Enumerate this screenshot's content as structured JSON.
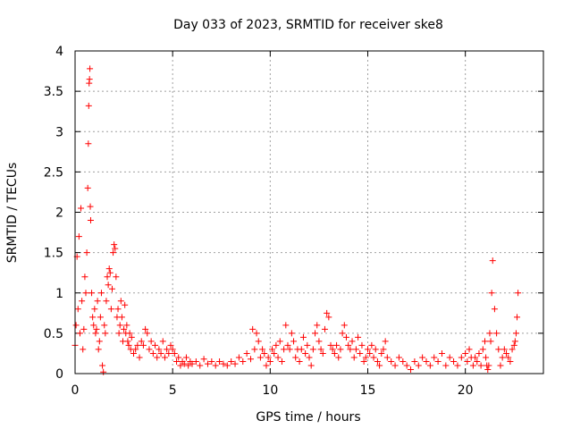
{
  "chart_data": {
    "type": "scatter",
    "title": "Day 033 of 2023, SRMTID for receiver ske8",
    "xlabel": "GPS time / hours",
    "ylabel": "SRMTID / TECUs",
    "xlim": [
      0,
      24
    ],
    "ylim": [
      0,
      4
    ],
    "xticks": [
      0,
      5,
      10,
      15,
      20
    ],
    "xtick_labels": [
      "0",
      "5",
      "10",
      "15",
      "20"
    ],
    "yticks": [
      0,
      0.5,
      1,
      1.5,
      2,
      2.5,
      3,
      3.5,
      4
    ],
    "ytick_labels": [
      "0",
      "0.5",
      "1",
      "1.5",
      "2",
      "2.5",
      "3",
      "3.5",
      "4"
    ],
    "grid": true,
    "marker": "plus",
    "color": "#ff0000",
    "series": [
      {
        "name": "SRMTID",
        "x": [
          0.0,
          0.05,
          0.1,
          0.15,
          0.2,
          0.25,
          0.3,
          0.35,
          0.4,
          0.45,
          0.5,
          0.55,
          0.6,
          0.65,
          0.68,
          0.7,
          0.72,
          0.74,
          0.76,
          0.78,
          0.8,
          0.85,
          0.9,
          0.95,
          1.0,
          1.05,
          1.1,
          1.15,
          1.2,
          1.25,
          1.3,
          1.35,
          1.4,
          1.45,
          1.5,
          1.55,
          1.6,
          1.65,
          1.7,
          1.75,
          1.8,
          1.85,
          1.9,
          1.95,
          2.0,
          2.05,
          2.1,
          2.15,
          2.2,
          2.25,
          2.3,
          2.35,
          2.4,
          2.45,
          2.5,
          2.55,
          2.6,
          2.65,
          2.7,
          2.75,
          2.8,
          2.85,
          2.9,
          3.0,
          3.1,
          3.2,
          3.3,
          3.4,
          3.5,
          3.6,
          3.7,
          3.8,
          3.9,
          4.0,
          4.1,
          4.2,
          4.3,
          4.4,
          4.5,
          4.6,
          4.7,
          4.8,
          4.9,
          5.0,
          5.1,
          5.2,
          5.3,
          5.4,
          5.5,
          5.6,
          5.7,
          5.8,
          5.9,
          6.0,
          6.2,
          6.4,
          6.6,
          6.8,
          7.0,
          7.2,
          7.4,
          7.6,
          7.8,
          8.0,
          8.2,
          8.4,
          8.6,
          8.8,
          9.0,
          9.1,
          9.2,
          9.3,
          9.4,
          9.5,
          9.6,
          9.7,
          9.8,
          9.9,
          10.0,
          10.1,
          10.2,
          10.3,
          10.4,
          10.5,
          10.6,
          10.7,
          10.8,
          10.9,
          11.0,
          11.1,
          11.2,
          11.3,
          11.4,
          11.5,
          11.6,
          11.7,
          11.8,
          11.9,
          12.0,
          12.1,
          12.2,
          12.3,
          12.4,
          12.5,
          12.6,
          12.7,
          12.8,
          12.9,
          13.0,
          13.1,
          13.2,
          13.3,
          13.4,
          13.5,
          13.6,
          13.7,
          13.8,
          13.9,
          14.0,
          14.1,
          14.2,
          14.3,
          14.4,
          14.5,
          14.6,
          14.7,
          14.8,
          14.9,
          15.0,
          15.1,
          15.2,
          15.3,
          15.4,
          15.5,
          15.6,
          15.7,
          15.8,
          15.9,
          16.0,
          16.2,
          16.4,
          16.6,
          16.8,
          17.0,
          17.2,
          17.4,
          17.6,
          17.8,
          18.0,
          18.2,
          18.4,
          18.6,
          18.8,
          19.0,
          19.2,
          19.4,
          19.6,
          19.8,
          20.0,
          20.1,
          20.2,
          20.3,
          20.4,
          20.5,
          20.6,
          20.7,
          20.8,
          20.9,
          21.0,
          21.05,
          21.1,
          21.15,
          21.2,
          21.25,
          21.3,
          21.35,
          21.4,
          21.5,
          21.6,
          21.7,
          21.8,
          21.9,
          22.0,
          22.1,
          22.2,
          22.3,
          22.4,
          22.5,
          22.55,
          22.6,
          22.65,
          22.7
        ],
        "y": [
          0.35,
          0.6,
          1.45,
          0.8,
          1.7,
          0.5,
          2.05,
          0.9,
          0.3,
          0.55,
          1.2,
          1.0,
          1.5,
          2.3,
          2.85,
          3.32,
          3.6,
          3.65,
          3.78,
          2.07,
          1.9,
          1.0,
          0.7,
          0.6,
          0.8,
          0.5,
          0.55,
          0.9,
          0.3,
          0.4,
          0.7,
          1.0,
          0.1,
          0.02,
          0.6,
          0.5,
          0.9,
          1.2,
          1.1,
          1.3,
          1.25,
          0.8,
          1.05,
          1.5,
          1.6,
          1.55,
          1.2,
          0.7,
          0.8,
          0.5,
          0.6,
          0.9,
          0.7,
          0.4,
          0.55,
          0.85,
          0.5,
          0.6,
          0.4,
          0.35,
          0.5,
          0.3,
          0.45,
          0.25,
          0.3,
          0.35,
          0.2,
          0.4,
          0.35,
          0.55,
          0.5,
          0.3,
          0.4,
          0.25,
          0.35,
          0.2,
          0.3,
          0.25,
          0.4,
          0.2,
          0.3,
          0.25,
          0.35,
          0.3,
          0.25,
          0.15,
          0.2,
          0.1,
          0.15,
          0.12,
          0.2,
          0.1,
          0.15,
          0.12,
          0.15,
          0.1,
          0.18,
          0.12,
          0.15,
          0.1,
          0.15,
          0.12,
          0.1,
          0.15,
          0.12,
          0.2,
          0.15,
          0.25,
          0.18,
          0.55,
          0.3,
          0.5,
          0.4,
          0.2,
          0.3,
          0.25,
          0.1,
          0.2,
          0.15,
          0.3,
          0.25,
          0.35,
          0.2,
          0.4,
          0.15,
          0.3,
          0.6,
          0.35,
          0.3,
          0.5,
          0.4,
          0.2,
          0.3,
          0.15,
          0.3,
          0.45,
          0.25,
          0.35,
          0.2,
          0.1,
          0.3,
          0.5,
          0.6,
          0.4,
          0.3,
          0.25,
          0.55,
          0.75,
          0.7,
          0.35,
          0.3,
          0.25,
          0.35,
          0.2,
          0.3,
          0.5,
          0.6,
          0.45,
          0.35,
          0.3,
          0.4,
          0.2,
          0.3,
          0.45,
          0.25,
          0.35,
          0.15,
          0.2,
          0.3,
          0.25,
          0.35,
          0.2,
          0.3,
          0.15,
          0.1,
          0.25,
          0.3,
          0.4,
          0.2,
          0.15,
          0.1,
          0.2,
          0.15,
          0.1,
          0.05,
          0.15,
          0.1,
          0.2,
          0.15,
          0.1,
          0.2,
          0.15,
          0.25,
          0.1,
          0.2,
          0.15,
          0.1,
          0.2,
          0.25,
          0.15,
          0.3,
          0.2,
          0.1,
          0.2,
          0.15,
          0.25,
          0.1,
          0.3,
          0.4,
          0.2,
          0.1,
          0.05,
          0.1,
          0.5,
          0.4,
          1.0,
          1.4,
          0.8,
          0.5,
          0.3,
          0.1,
          0.2,
          0.3,
          0.25,
          0.2,
          0.15,
          0.3,
          0.35,
          0.4,
          0.5,
          0.7,
          1.0
        ]
      }
    ]
  }
}
